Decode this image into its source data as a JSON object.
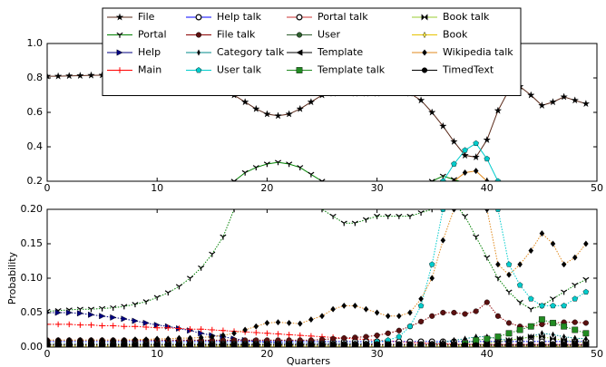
{
  "chart_data": {
    "type": "line",
    "xlabel": "Quarters",
    "legend": "upper center",
    "x": [
      0,
      1,
      2,
      3,
      4,
      5,
      6,
      7,
      8,
      9,
      10,
      11,
      12,
      13,
      14,
      15,
      16,
      17,
      18,
      19,
      20,
      21,
      22,
      23,
      24,
      25,
      26,
      27,
      28,
      29,
      30,
      31,
      32,
      33,
      34,
      35,
      36,
      37,
      38,
      39,
      40,
      41,
      42,
      43,
      44,
      45,
      46,
      47,
      48,
      49
    ],
    "xlim": [
      0,
      50
    ],
    "xticks": [
      0,
      10,
      20,
      30,
      40,
      50
    ],
    "panels": [
      {
        "ylim": [
          0.2,
          1.0
        ],
        "yticks": [
          0.2,
          0.4,
          0.6,
          {
            "value": 0.8,
            "label": "0.8"
          },
          {
            "value": 1,
            "label": "1.0"
          }
        ],
        "linestyle": "solid"
      },
      {
        "ylim": [
          0,
          0.2
        ],
        "yticks": [
          {
            "value": 0,
            "label": "0.00"
          },
          {
            "value": 0.05,
            "label": "0.05"
          },
          {
            "value": 0.1,
            "label": "0.10"
          },
          {
            "value": 0.15,
            "label": "0.15"
          },
          {
            "value": 0.2,
            "label": "0.20"
          }
        ],
        "ylabel": "Probability",
        "linestyle": "dotted"
      }
    ],
    "series": [
      {
        "name": "File",
        "color": "#5a2a1a",
        "marker": "star",
        "marker_color": "#000000",
        "values": [
          0.81,
          0.81,
          0.812,
          0.813,
          0.815,
          0.816,
          0.817,
          0.818,
          0.819,
          0.82,
          0.82,
          0.818,
          0.812,
          0.8,
          0.79,
          0.77,
          0.74,
          0.7,
          0.66,
          0.62,
          0.59,
          0.58,
          0.59,
          0.62,
          0.66,
          0.7,
          0.71,
          0.72,
          0.71,
          0.71,
          0.71,
          0.72,
          0.72,
          0.71,
          0.67,
          0.6,
          0.52,
          0.43,
          0.35,
          0.34,
          0.44,
          0.61,
          0.73,
          0.75,
          0.7,
          0.64,
          0.66,
          0.69,
          0.67,
          0.65
        ]
      },
      {
        "name": "Portal",
        "color": "#008000",
        "marker": "tri",
        "marker_color": "#000000",
        "values": [
          0.052,
          0.053,
          0.054,
          0.055,
          0.055,
          0.056,
          0.057,
          0.059,
          0.062,
          0.066,
          0.072,
          0.079,
          0.088,
          0.1,
          0.115,
          0.135,
          0.16,
          0.2,
          0.25,
          0.28,
          0.3,
          0.31,
          0.3,
          0.28,
          0.24,
          0.2,
          0.19,
          0.18,
          0.18,
          0.185,
          0.19,
          0.19,
          0.19,
          0.19,
          0.195,
          0.2,
          0.23,
          0.21,
          0.19,
          0.16,
          0.13,
          0.1,
          0.08,
          0.065,
          0.055,
          0.06,
          0.07,
          0.08,
          0.09,
          0.098
        ]
      },
      {
        "name": "Help",
        "color": "#000080",
        "marker": "tri_right",
        "marker_color": "#000080",
        "values": [
          0.05,
          0.05,
          0.05,
          0.049,
          0.047,
          0.045,
          0.043,
          0.041,
          0.038,
          0.035,
          0.032,
          0.03,
          0.027,
          0.024,
          0.02,
          0.017,
          0.015,
          0.012,
          0.01,
          0.008,
          0.007,
          0.006,
          0.005,
          0.005,
          0.005,
          0.005,
          0.005,
          0.005,
          0.005,
          0.005,
          0.004,
          0.004,
          0.004,
          0.004,
          0.004,
          0.004,
          0.004,
          0.004,
          0.004,
          0.004,
          0.004,
          0.004,
          0.004,
          0.004,
          0.004,
          0.004,
          0.004,
          0.004,
          0.004,
          0.004
        ]
      },
      {
        "name": "Main",
        "color": "#ff0000",
        "marker": "plus",
        "marker_color": "#ff0000",
        "values": [
          0.033,
          0.033,
          0.033,
          0.032,
          0.032,
          0.031,
          0.031,
          0.03,
          0.03,
          0.029,
          0.028,
          0.028,
          0.027,
          0.026,
          0.026,
          0.025,
          0.024,
          0.023,
          0.022,
          0.021,
          0.02,
          0.019,
          0.018,
          0.017,
          0.016,
          0.015,
          0.014,
          0.013,
          0.012,
          0.011,
          0.01,
          0.009,
          0.008,
          0.007,
          0.006,
          0.005,
          0.005,
          0.004,
          0.004,
          0.004,
          0.003,
          0.003,
          0.003,
          0.003,
          0.003,
          0.003,
          0.003,
          0.003,
          0.003,
          0.003
        ]
      },
      {
        "name": "Help talk",
        "color": "#0000ff",
        "marker": "circle_half",
        "marker_color": "#000000",
        "values": [
          0.008,
          0.008,
          0.008,
          0.008,
          0.008,
          0.008,
          0.008,
          0.008,
          0.008,
          0.008,
          0.008,
          0.008,
          0.008,
          0.008,
          0.008,
          0.008,
          0.008,
          0.008,
          0.008,
          0.008,
          0.008,
          0.008,
          0.008,
          0.008,
          0.008,
          0.008,
          0.008,
          0.008,
          0.008,
          0.008,
          0.008,
          0.008,
          0.008,
          0.008,
          0.008,
          0.008,
          0.008,
          0.008,
          0.008,
          0.008,
          0.008,
          0.008,
          0.008,
          0.008,
          0.008,
          0.008,
          0.008,
          0.008,
          0.008,
          0.008
        ]
      },
      {
        "name": "File talk",
        "color": "#8b0000",
        "marker": "circle",
        "marker_color": "#5a1010",
        "values": [
          0.01,
          0.01,
          0.01,
          0.01,
          0.01,
          0.01,
          0.01,
          0.01,
          0.01,
          0.01,
          0.01,
          0.01,
          0.01,
          0.01,
          0.01,
          0.01,
          0.01,
          0.01,
          0.01,
          0.01,
          0.01,
          0.01,
          0.01,
          0.01,
          0.01,
          0.011,
          0.012,
          0.013,
          0.014,
          0.015,
          0.017,
          0.02,
          0.024,
          0.03,
          0.037,
          0.045,
          0.05,
          0.05,
          0.048,
          0.052,
          0.065,
          0.045,
          0.035,
          0.03,
          0.03,
          0.033,
          0.035,
          0.036,
          0.036,
          0.035
        ]
      },
      {
        "name": "Category talk",
        "color": "#008b8b",
        "marker": "diamond_thin",
        "marker_color": "#000000",
        "values": [
          0.003,
          0.003,
          0.003,
          0.003,
          0.003,
          0.003,
          0.003,
          0.003,
          0.003,
          0.003,
          0.003,
          0.003,
          0.003,
          0.003,
          0.003,
          0.003,
          0.003,
          0.003,
          0.003,
          0.003,
          0.003,
          0.003,
          0.003,
          0.003,
          0.003,
          0.003,
          0.003,
          0.003,
          0.003,
          0.003,
          0.003,
          0.003,
          0.003,
          0.003,
          0.003,
          0.005,
          0.007,
          0.01,
          0.012,
          0.015,
          0.015,
          0.012,
          0.01,
          0.012,
          0.015,
          0.02,
          0.018,
          0.015,
          0.013,
          0.012
        ]
      },
      {
        "name": "User talk",
        "color": "#00cccc",
        "marker": "pentagon",
        "marker_color": "#00cccc",
        "values": [
          0.005,
          0.005,
          0.005,
          0.005,
          0.005,
          0.005,
          0.005,
          0.005,
          0.005,
          0.005,
          0.005,
          0.005,
          0.005,
          0.005,
          0.005,
          0.005,
          0.005,
          0.005,
          0.005,
          0.005,
          0.005,
          0.005,
          0.005,
          0.005,
          0.005,
          0.005,
          0.005,
          0.005,
          0.005,
          0.005,
          0.008,
          0.01,
          0.015,
          0.03,
          0.06,
          0.12,
          0.2,
          0.3,
          0.38,
          0.42,
          0.33,
          0.2,
          0.12,
          0.09,
          0.07,
          0.06,
          0.06,
          0.06,
          0.07,
          0.08
        ]
      },
      {
        "name": "Portal talk",
        "color": "#cc3333",
        "marker": "circle_half",
        "marker_color": "#000000",
        "values": [
          0.004,
          0.004,
          0.004,
          0.004,
          0.004,
          0.004,
          0.004,
          0.004,
          0.004,
          0.004,
          0.004,
          0.004,
          0.004,
          0.004,
          0.004,
          0.004,
          0.004,
          0.004,
          0.004,
          0.004,
          0.004,
          0.004,
          0.004,
          0.004,
          0.004,
          0.004,
          0.004,
          0.004,
          0.004,
          0.004,
          0.004,
          0.004,
          0.004,
          0.004,
          0.004,
          0.004,
          0.004,
          0.004,
          0.004,
          0.004,
          0.004,
          0.004,
          0.004,
          0.004,
          0.004,
          0.004,
          0.004,
          0.004,
          0.004,
          0.004
        ]
      },
      {
        "name": "User",
        "color": "#2e5e2e",
        "marker": "circle",
        "marker_color": "#2e5e2e",
        "values": [
          0.002,
          0.002,
          0.002,
          0.002,
          0.002,
          0.002,
          0.002,
          0.002,
          0.002,
          0.002,
          0.002,
          0.002,
          0.002,
          0.002,
          0.002,
          0.002,
          0.002,
          0.002,
          0.002,
          0.002,
          0.002,
          0.002,
          0.002,
          0.002,
          0.002,
          0.002,
          0.002,
          0.002,
          0.002,
          0.002,
          0.002,
          0.002,
          0.002,
          0.002,
          0.002,
          0.002,
          0.002,
          0.002,
          0.002,
          0.002,
          0.002,
          0.002,
          0.002,
          0.002,
          0.002,
          0.002,
          0.002,
          0.002,
          0.002,
          0.002
        ]
      },
      {
        "name": "Template",
        "color": "#000000",
        "marker": "tri_left",
        "marker_color": "#000000",
        "values": [
          0.001,
          0.001,
          0.001,
          0.001,
          0.001,
          0.001,
          0.001,
          0.001,
          0.001,
          0.001,
          0.001,
          0.001,
          0.001,
          0.001,
          0.001,
          0.001,
          0.001,
          0.001,
          0.001,
          0.001,
          0.001,
          0.001,
          0.001,
          0.001,
          0.001,
          0.001,
          0.001,
          0.001,
          0.001,
          0.001,
          0.001,
          0.001,
          0.001,
          0.001,
          0.001,
          0.001,
          0.001,
          0.001,
          0.001,
          0.001,
          0.001,
          0.001,
          0.001,
          0.001,
          0.001,
          0.001,
          0.001,
          0.001,
          0.001,
          0.001
        ]
      },
      {
        "name": "Template talk",
        "color": "#228b22",
        "marker": "square",
        "marker_color": "#228b22",
        "values": [
          0.001,
          0.001,
          0.001,
          0.001,
          0.001,
          0.001,
          0.001,
          0.001,
          0.001,
          0.001,
          0.001,
          0.001,
          0.001,
          0.001,
          0.001,
          0.001,
          0.001,
          0.001,
          0.001,
          0.001,
          0.001,
          0.001,
          0.001,
          0.001,
          0.001,
          0.001,
          0.001,
          0.001,
          0.001,
          0.001,
          0.001,
          0.001,
          0.001,
          0.001,
          0.001,
          0.001,
          0.001,
          0.001,
          0.005,
          0.01,
          0.012,
          0.015,
          0.02,
          0.025,
          0.03,
          0.04,
          0.035,
          0.03,
          0.025,
          0.02
        ]
      },
      {
        "name": "Book talk",
        "color": "#9acd32",
        "marker": "bowtie",
        "marker_color": "#000000",
        "values": [
          0.002,
          0.002,
          0.002,
          0.002,
          0.002,
          0.002,
          0.002,
          0.002,
          0.002,
          0.002,
          0.002,
          0.002,
          0.002,
          0.002,
          0.002,
          0.002,
          0.002,
          0.002,
          0.002,
          0.002,
          0.002,
          0.002,
          0.002,
          0.002,
          0.002,
          0.002,
          0.002,
          0.002,
          0.002,
          0.002,
          0.002,
          0.002,
          0.002,
          0.002,
          0.002,
          0.002,
          0.002,
          0.002,
          0.002,
          0.002,
          0.005,
          0.008,
          0.01,
          0.012,
          0.015,
          0.015,
          0.012,
          0.01,
          0.008,
          0.006
        ]
      },
      {
        "name": "Book",
        "color": "#e6c200",
        "marker": "diamond_thin",
        "marker_color": "#f5e642",
        "values": [
          0.001,
          0.001,
          0.001,
          0.001,
          0.001,
          0.001,
          0.001,
          0.001,
          0.001,
          0.001,
          0.001,
          0.001,
          0.001,
          0.001,
          0.001,
          0.001,
          0.001,
          0.001,
          0.001,
          0.001,
          0.001,
          0.001,
          0.001,
          0.001,
          0.001,
          0.001,
          0.001,
          0.001,
          0.001,
          0.001,
          0.001,
          0.001,
          0.001,
          0.001,
          0.001,
          0.001,
          0.001,
          0.001,
          0.001,
          0.001,
          0.001,
          0.001,
          0.001,
          0.001,
          0.001,
          0.001,
          0.001,
          0.001,
          0.001,
          0.001
        ]
      },
      {
        "name": "Wikipedia talk",
        "color": "#e08a1e",
        "marker": "diamond",
        "marker_color": "#000000",
        "values": [
          0.01,
          0.01,
          0.01,
          0.01,
          0.01,
          0.01,
          0.01,
          0.01,
          0.011,
          0.011,
          0.012,
          0.012,
          0.013,
          0.013,
          0.014,
          0.015,
          0.017,
          0.02,
          0.025,
          0.03,
          0.035,
          0.036,
          0.035,
          0.034,
          0.04,
          0.045,
          0.055,
          0.06,
          0.06,
          0.055,
          0.05,
          0.045,
          0.045,
          0.05,
          0.07,
          0.1,
          0.155,
          0.2,
          0.25,
          0.26,
          0.2,
          0.12,
          0.105,
          0.12,
          0.14,
          0.165,
          0.15,
          0.12,
          0.13,
          0.15
        ]
      },
      {
        "name": "TimedText",
        "color": "#000000",
        "marker": "circle",
        "marker_color": "#000000",
        "values": [
          0.003,
          0.003,
          0.003,
          0.003,
          0.003,
          0.003,
          0.003,
          0.003,
          0.003,
          0.003,
          0.003,
          0.003,
          0.003,
          0.003,
          0.003,
          0.003,
          0.003,
          0.003,
          0.003,
          0.003,
          0.003,
          0.003,
          0.003,
          0.003,
          0.003,
          0.003,
          0.003,
          0.003,
          0.003,
          0.003,
          0.003,
          0.003,
          0.003,
          0.003,
          0.003,
          0.003,
          0.003,
          0.003,
          0.003,
          0.003,
          0.003,
          0.003,
          0.003,
          0.003,
          0.003,
          0.003,
          0.003,
          0.003,
          0.003,
          0.003
        ]
      }
    ]
  }
}
